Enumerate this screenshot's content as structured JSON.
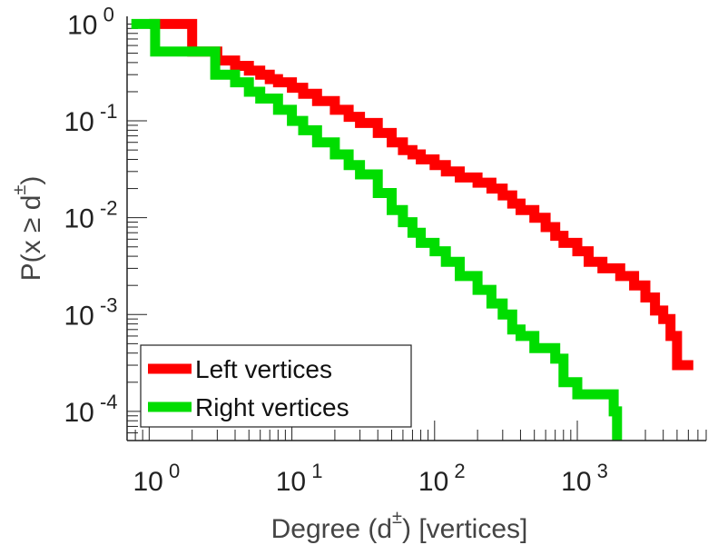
{
  "chart_data": {
    "type": "line",
    "xscale": "log",
    "yscale": "log",
    "xlim": [
      0.7,
      8000
    ],
    "ylim": [
      5e-05,
      1.2
    ],
    "xticks": [
      1,
      10,
      100,
      1000
    ],
    "yticks": [
      1,
      0.1,
      0.01,
      0.001,
      0.0001
    ],
    "xtick_labels": [
      {
        "base": "10",
        "exp": "0"
      },
      {
        "base": "10",
        "exp": "1"
      },
      {
        "base": "10",
        "exp": "2"
      },
      {
        "base": "10",
        "exp": "3"
      }
    ],
    "ytick_labels": [
      {
        "base": "10",
        "exp": "0"
      },
      {
        "base": "10",
        "exp": "-1"
      },
      {
        "base": "10",
        "exp": "-2"
      },
      {
        "base": "10",
        "exp": "-3"
      },
      {
        "base": "10",
        "exp": "-4"
      }
    ],
    "xlabel": {
      "main": "Degree (d",
      "sup": "±",
      "rest": ") [vertices]"
    },
    "ylabel": {
      "main": "P(x ≥ d",
      "sup": "±",
      "rest": ")"
    },
    "grid": false,
    "legend_position": "bottom-left",
    "series": [
      {
        "name": "Left vertices",
        "color": "#ff0000",
        "step": true,
        "points": [
          [
            1,
            1.0
          ],
          [
            2,
            0.52
          ],
          [
            3,
            0.42
          ],
          [
            4,
            0.37
          ],
          [
            5,
            0.33
          ],
          [
            6,
            0.3
          ],
          [
            7,
            0.27
          ],
          [
            8,
            0.25
          ],
          [
            10,
            0.22
          ],
          [
            12,
            0.19
          ],
          [
            15,
            0.16
          ],
          [
            20,
            0.13
          ],
          [
            25,
            0.11
          ],
          [
            30,
            0.095
          ],
          [
            40,
            0.075
          ],
          [
            50,
            0.06
          ],
          [
            60,
            0.05
          ],
          [
            70,
            0.045
          ],
          [
            80,
            0.04
          ],
          [
            100,
            0.035
          ],
          [
            120,
            0.03
          ],
          [
            150,
            0.026
          ],
          [
            200,
            0.023
          ],
          [
            250,
            0.02
          ],
          [
            300,
            0.017
          ],
          [
            350,
            0.014
          ],
          [
            400,
            0.012
          ],
          [
            500,
            0.01
          ],
          [
            600,
            0.008
          ],
          [
            700,
            0.0065
          ],
          [
            800,
            0.0055
          ],
          [
            1000,
            0.0045
          ],
          [
            1200,
            0.0035
          ],
          [
            1500,
            0.003
          ],
          [
            2000,
            0.0025
          ],
          [
            2500,
            0.002
          ],
          [
            3000,
            0.0015
          ],
          [
            3500,
            0.0011
          ],
          [
            4000,
            0.0009
          ],
          [
            4500,
            0.0006
          ],
          [
            5000,
            0.0003
          ],
          [
            6500,
            0.0003
          ]
        ]
      },
      {
        "name": "Right vertices",
        "color": "#00dd00",
        "step": true,
        "points": [
          [
            0.75,
            1.0
          ],
          [
            1.1,
            0.52
          ],
          [
            2,
            0.52
          ],
          [
            2.9,
            0.3
          ],
          [
            4,
            0.25
          ],
          [
            5,
            0.2
          ],
          [
            6,
            0.17
          ],
          [
            8,
            0.13
          ],
          [
            10,
            0.1
          ],
          [
            12,
            0.08
          ],
          [
            15,
            0.06
          ],
          [
            20,
            0.045
          ],
          [
            25,
            0.035
          ],
          [
            30,
            0.028
          ],
          [
            40,
            0.018
          ],
          [
            50,
            0.012
          ],
          [
            60,
            0.009
          ],
          [
            70,
            0.007
          ],
          [
            80,
            0.0055
          ],
          [
            100,
            0.0045
          ],
          [
            120,
            0.0035
          ],
          [
            150,
            0.0025
          ],
          [
            200,
            0.0018
          ],
          [
            250,
            0.0013
          ],
          [
            300,
            0.001
          ],
          [
            350,
            0.0007
          ],
          [
            400,
            0.0006
          ],
          [
            500,
            0.00045
          ],
          [
            700,
            0.00035
          ],
          [
            800,
            0.0002
          ],
          [
            1000,
            0.00015
          ],
          [
            1500,
            0.00015
          ],
          [
            1800,
            0.0001
          ],
          [
            1900,
            5e-05
          ]
        ]
      }
    ]
  }
}
